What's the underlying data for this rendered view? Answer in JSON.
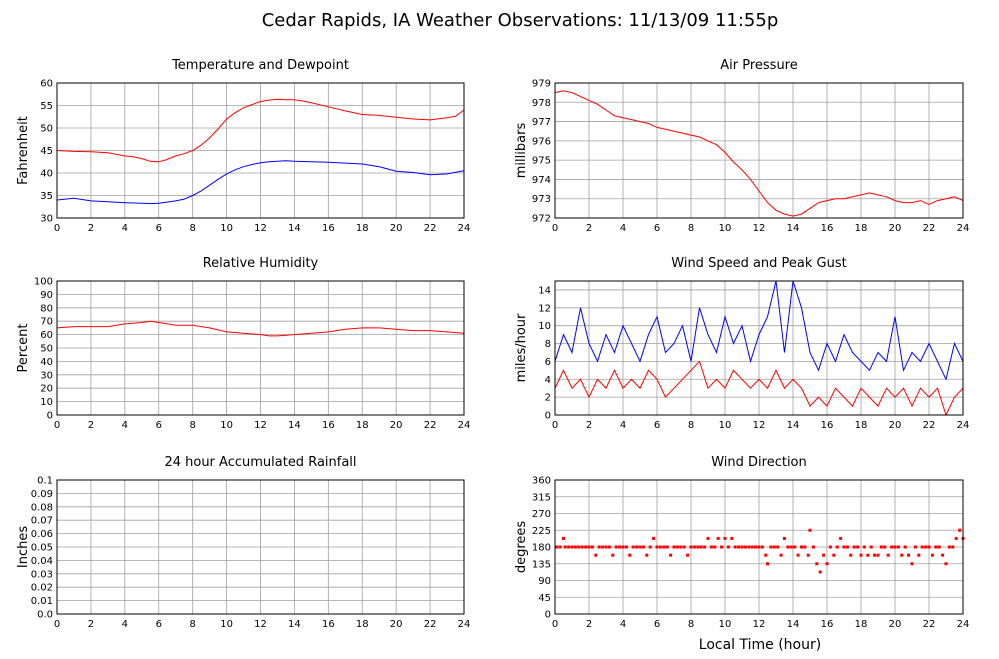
{
  "page_title": "Cedar Rapids, IA Weather Observations: 11/13/09 11:55p",
  "common_xlabel": "Local Time (hour)",
  "colors": {
    "red": "#ff0000",
    "blue": "#0000ff",
    "grid": "#a0a0a0"
  },
  "chart_data": [
    {
      "id": "temp",
      "type": "line",
      "title": "Temperature and Dewpoint",
      "xlabel": "",
      "ylabel": "Fahrenheit",
      "xlim": [
        0,
        24
      ],
      "ylim": [
        30,
        60
      ],
      "xticks": [
        0,
        2,
        4,
        6,
        8,
        10,
        12,
        14,
        16,
        18,
        20,
        22,
        24
      ],
      "yticks": [
        "30",
        "35",
        "40",
        "45",
        "50",
        "55",
        "60"
      ],
      "grid": true,
      "series": [
        {
          "color": "#ff0000",
          "x": [
            0,
            1,
            2,
            3,
            4,
            4.5,
            5,
            5.5,
            6,
            6.5,
            7,
            7.5,
            8,
            8.5,
            9,
            9.5,
            10,
            10.5,
            11,
            11.5,
            12,
            12.5,
            13,
            13.5,
            14,
            14.5,
            15,
            16,
            17,
            18,
            19,
            20,
            21,
            22,
            23,
            23.5,
            24
          ],
          "y": [
            45,
            44.8,
            44.7,
            44.5,
            43.8,
            43.6,
            43.2,
            42.6,
            42.5,
            43.0,
            43.8,
            44.3,
            45.0,
            46.2,
            47.8,
            49.8,
            52.0,
            53.4,
            54.5,
            55.2,
            55.9,
            56.2,
            56.4,
            56.3,
            56.3,
            56.0,
            55.6,
            54.7,
            53.8,
            53.0,
            52.8,
            52.4,
            52.0,
            51.8,
            52.3,
            52.6,
            54.0
          ]
        },
        {
          "color": "#0000ff",
          "x": [
            0,
            1,
            2,
            3,
            4,
            5,
            5.5,
            6,
            7,
            7.5,
            8,
            8.5,
            9,
            9.5,
            10,
            10.5,
            11,
            11.5,
            12,
            12.5,
            13,
            13.5,
            14,
            15,
            16,
            17,
            18,
            19,
            20,
            21,
            22,
            23,
            24
          ],
          "y": [
            34,
            34.4,
            33.8,
            33.6,
            33.4,
            33.3,
            33.2,
            33.3,
            33.8,
            34.2,
            35.0,
            36.0,
            37.3,
            38.6,
            39.8,
            40.7,
            41.4,
            41.9,
            42.3,
            42.5,
            42.6,
            42.7,
            42.6,
            42.5,
            42.4,
            42.2,
            42.0,
            41.4,
            40.4,
            40.1,
            39.6,
            39.8,
            40.5
          ]
        }
      ]
    },
    {
      "id": "pressure",
      "type": "line",
      "title": "Air Pressure",
      "xlabel": "",
      "ylabel": "millibars",
      "xlim": [
        0,
        24
      ],
      "ylim": [
        972,
        979
      ],
      "xticks": [
        0,
        2,
        4,
        6,
        8,
        10,
        12,
        14,
        16,
        18,
        20,
        22,
        24
      ],
      "yticks": [
        "972",
        "973",
        "974",
        "975",
        "976",
        "977",
        "978",
        "979"
      ],
      "grid": true,
      "series": [
        {
          "color": "#ff0000",
          "x": [
            0,
            0.5,
            1,
            1.5,
            2,
            2.5,
            3,
            3.5,
            4,
            4.5,
            5,
            5.5,
            6,
            6.5,
            7,
            7.5,
            8,
            8.5,
            9,
            9.5,
            10,
            10.5,
            11,
            11.5,
            12,
            12.5,
            13,
            13.5,
            14,
            14.5,
            15,
            15.5,
            16,
            16.5,
            17,
            17.5,
            18,
            18.5,
            19,
            19.5,
            20,
            20.5,
            21,
            21.5,
            22,
            22.5,
            23,
            23.5,
            24
          ],
          "y": [
            978.5,
            978.6,
            978.5,
            978.3,
            978.1,
            977.9,
            977.6,
            977.3,
            977.2,
            977.1,
            977.0,
            976.9,
            976.7,
            976.6,
            976.5,
            976.4,
            976.3,
            976.2,
            976.0,
            975.8,
            975.4,
            974.9,
            974.5,
            974.0,
            973.4,
            972.8,
            972.4,
            972.2,
            972.1,
            972.2,
            972.5,
            972.8,
            972.9,
            973.0,
            973.0,
            973.1,
            973.2,
            973.3,
            973.2,
            973.1,
            972.9,
            972.8,
            972.8,
            972.9,
            972.7,
            972.9,
            973.0,
            973.1,
            972.9
          ]
        }
      ]
    },
    {
      "id": "humidity",
      "type": "line",
      "title": "Relative Humidity",
      "xlabel": "",
      "ylabel": "Percent",
      "xlim": [
        0,
        24
      ],
      "ylim": [
        0,
        100
      ],
      "xticks": [
        0,
        2,
        4,
        6,
        8,
        10,
        12,
        14,
        16,
        18,
        20,
        22,
        24
      ],
      "yticks": [
        "0",
        "10",
        "20",
        "30",
        "40",
        "50",
        "60",
        "70",
        "80",
        "90",
        "100"
      ],
      "grid": true,
      "series": [
        {
          "color": "#ff0000",
          "x": [
            0,
            1,
            2,
            3,
            4,
            5,
            5.5,
            6,
            7,
            8,
            9,
            10,
            11,
            12,
            12.5,
            13,
            14,
            15,
            16,
            17,
            18,
            19,
            20,
            21,
            22,
            23,
            24
          ],
          "y": [
            65,
            66,
            66,
            66,
            68,
            69,
            70,
            69,
            67,
            67,
            65,
            62,
            61,
            60,
            59,
            59,
            60,
            61,
            62,
            64,
            65,
            65,
            64,
            63,
            63,
            62,
            61
          ]
        }
      ]
    },
    {
      "id": "wind",
      "type": "line",
      "title": "Wind Speed and Peak Gust",
      "xlabel": "",
      "ylabel": "miles/hour",
      "xlim": [
        0,
        24
      ],
      "ylim": [
        0,
        15
      ],
      "xticks": [
        0,
        2,
        4,
        6,
        8,
        10,
        12,
        14,
        16,
        18,
        20,
        22,
        24
      ],
      "yticks": [
        "0",
        "2",
        "4",
        "6",
        "8",
        "10",
        "12",
        "14"
      ],
      "grid": true,
      "series": [
        {
          "color": "#0000ff",
          "x": [
            0,
            0.5,
            1,
            1.5,
            2,
            2.5,
            3,
            3.5,
            4,
            4.5,
            5,
            5.5,
            6,
            6.5,
            7,
            7.5,
            8,
            8.5,
            9,
            9.5,
            10,
            10.5,
            11,
            11.5,
            12,
            12.5,
            13,
            13.5,
            14,
            14.5,
            15,
            15.5,
            16,
            16.5,
            17,
            17.5,
            18,
            18.5,
            19,
            19.5,
            20,
            20.5,
            21,
            21.5,
            22,
            22.5,
            23,
            23.5,
            24
          ],
          "y": [
            6,
            9,
            7,
            12,
            8,
            6,
            9,
            7,
            10,
            8,
            6,
            9,
            11,
            7,
            8,
            10,
            6,
            12,
            9,
            7,
            11,
            8,
            10,
            6,
            9,
            11,
            15,
            7,
            15,
            12,
            7,
            5,
            8,
            6,
            9,
            7,
            6,
            5,
            7,
            6,
            11,
            5,
            7,
            6,
            8,
            6,
            4,
            8,
            6
          ]
        },
        {
          "color": "#ff0000",
          "x": [
            0,
            0.5,
            1,
            1.5,
            2,
            2.5,
            3,
            3.5,
            4,
            4.5,
            5,
            5.5,
            6,
            6.5,
            7,
            7.5,
            8,
            8.5,
            9,
            9.5,
            10,
            10.5,
            11,
            11.5,
            12,
            12.5,
            13,
            13.5,
            14,
            14.5,
            15,
            15.5,
            16,
            16.5,
            17,
            17.5,
            18,
            18.5,
            19,
            19.5,
            20,
            20.5,
            21,
            21.5,
            22,
            22.5,
            23,
            23.5,
            24
          ],
          "y": [
            3,
            5,
            3,
            4,
            2,
            4,
            3,
            5,
            3,
            4,
            3,
            5,
            4,
            2,
            3,
            4,
            5,
            6,
            3,
            4,
            3,
            5,
            4,
            3,
            4,
            3,
            5,
            3,
            4,
            3,
            1,
            2,
            1,
            3,
            2,
            1,
            3,
            2,
            1,
            3,
            2,
            3,
            1,
            3,
            2,
            3,
            0,
            2,
            3
          ]
        }
      ]
    },
    {
      "id": "rain",
      "type": "line",
      "title": "24 hour Accumulated Rainfall",
      "xlabel": "",
      "ylabel": "Inches",
      "xlim": [
        0,
        24
      ],
      "ylim": [
        0,
        0.1
      ],
      "xticks": [
        0,
        2,
        4,
        6,
        8,
        10,
        12,
        14,
        16,
        18,
        20,
        22,
        24
      ],
      "yticks": [
        "0.0",
        "0.01",
        "0.02",
        "0.03",
        "0.04",
        "0.05",
        "0.06",
        "0.07",
        "0.08",
        "0.09",
        "0.1"
      ],
      "grid": true,
      "series": [
        {
          "color": "#ff0000",
          "x": [
            0,
            24
          ],
          "y": [
            0,
            0
          ]
        }
      ]
    },
    {
      "id": "direction",
      "type": "scatter",
      "title": "Wind Direction",
      "xlabel": "Local Time (hour)",
      "ylabel": "degrees",
      "xlim": [
        0,
        24
      ],
      "ylim": [
        0,
        360
      ],
      "xticks": [
        0,
        2,
        4,
        6,
        8,
        10,
        12,
        14,
        16,
        18,
        20,
        22,
        24
      ],
      "yticks": [
        "0",
        "45",
        "90",
        "135",
        "180",
        "225",
        "270",
        "315",
        "360"
      ],
      "grid": true,
      "series": [
        {
          "color": "#ff0000",
          "x": [
            0.1,
            0.3,
            0.5,
            0.6,
            0.8,
            1.0,
            1.2,
            1.4,
            1.6,
            1.8,
            2.0,
            2.2,
            2.4,
            2.6,
            2.8,
            3.0,
            3.2,
            3.4,
            3.6,
            3.8,
            4.0,
            4.2,
            4.4,
            4.6,
            4.8,
            5.0,
            5.2,
            5.4,
            5.6,
            5.8,
            6.0,
            6.2,
            6.4,
            6.6,
            6.8,
            7.0,
            7.2,
            7.4,
            7.6,
            7.8,
            8.0,
            8.2,
            8.4,
            8.6,
            8.8,
            9.0,
            9.2,
            9.4,
            9.6,
            9.8,
            10.0,
            10.2,
            10.4,
            10.6,
            10.8,
            11.0,
            11.2,
            11.4,
            11.6,
            11.8,
            12.0,
            12.2,
            12.4,
            12.5,
            12.7,
            12.9,
            13.1,
            13.3,
            13.5,
            13.7,
            13.9,
            14.1,
            14.3,
            14.5,
            14.7,
            14.9,
            15.0,
            15.2,
            15.4,
            15.6,
            15.8,
            16.0,
            16.2,
            16.4,
            16.6,
            16.8,
            17.0,
            17.2,
            17.4,
            17.6,
            17.8,
            18.0,
            18.2,
            18.4,
            18.6,
            18.8,
            19.0,
            19.2,
            19.4,
            19.6,
            19.8,
            20.0,
            20.2,
            20.4,
            20.6,
            20.8,
            21.0,
            21.2,
            21.4,
            21.6,
            21.8,
            22.0,
            22.2,
            22.4,
            22.6,
            22.8,
            23.0,
            23.2,
            23.4,
            23.6,
            23.8,
            24.0
          ],
          "y": [
            180,
            180,
            203,
            180,
            180,
            180,
            180,
            180,
            180,
            180,
            180,
            180,
            158,
            180,
            180,
            180,
            180,
            158,
            180,
            180,
            180,
            180,
            158,
            180,
            180,
            180,
            180,
            158,
            180,
            203,
            180,
            180,
            180,
            180,
            158,
            180,
            180,
            180,
            180,
            158,
            180,
            180,
            180,
            180,
            180,
            203,
            180,
            180,
            203,
            180,
            203,
            180,
            203,
            180,
            180,
            180,
            180,
            180,
            180,
            180,
            180,
            180,
            158,
            135,
            180,
            180,
            180,
            158,
            203,
            180,
            180,
            180,
            158,
            180,
            180,
            158,
            225,
            180,
            135,
            113,
            158,
            135,
            180,
            158,
            180,
            203,
            180,
            180,
            158,
            180,
            180,
            158,
            180,
            158,
            180,
            158,
            158,
            180,
            180,
            158,
            180,
            180,
            180,
            158,
            180,
            158,
            135,
            180,
            158,
            180,
            180,
            180,
            158,
            180,
            180,
            158,
            135,
            180,
            180,
            203,
            225,
            203
          ]
        }
      ]
    }
  ]
}
